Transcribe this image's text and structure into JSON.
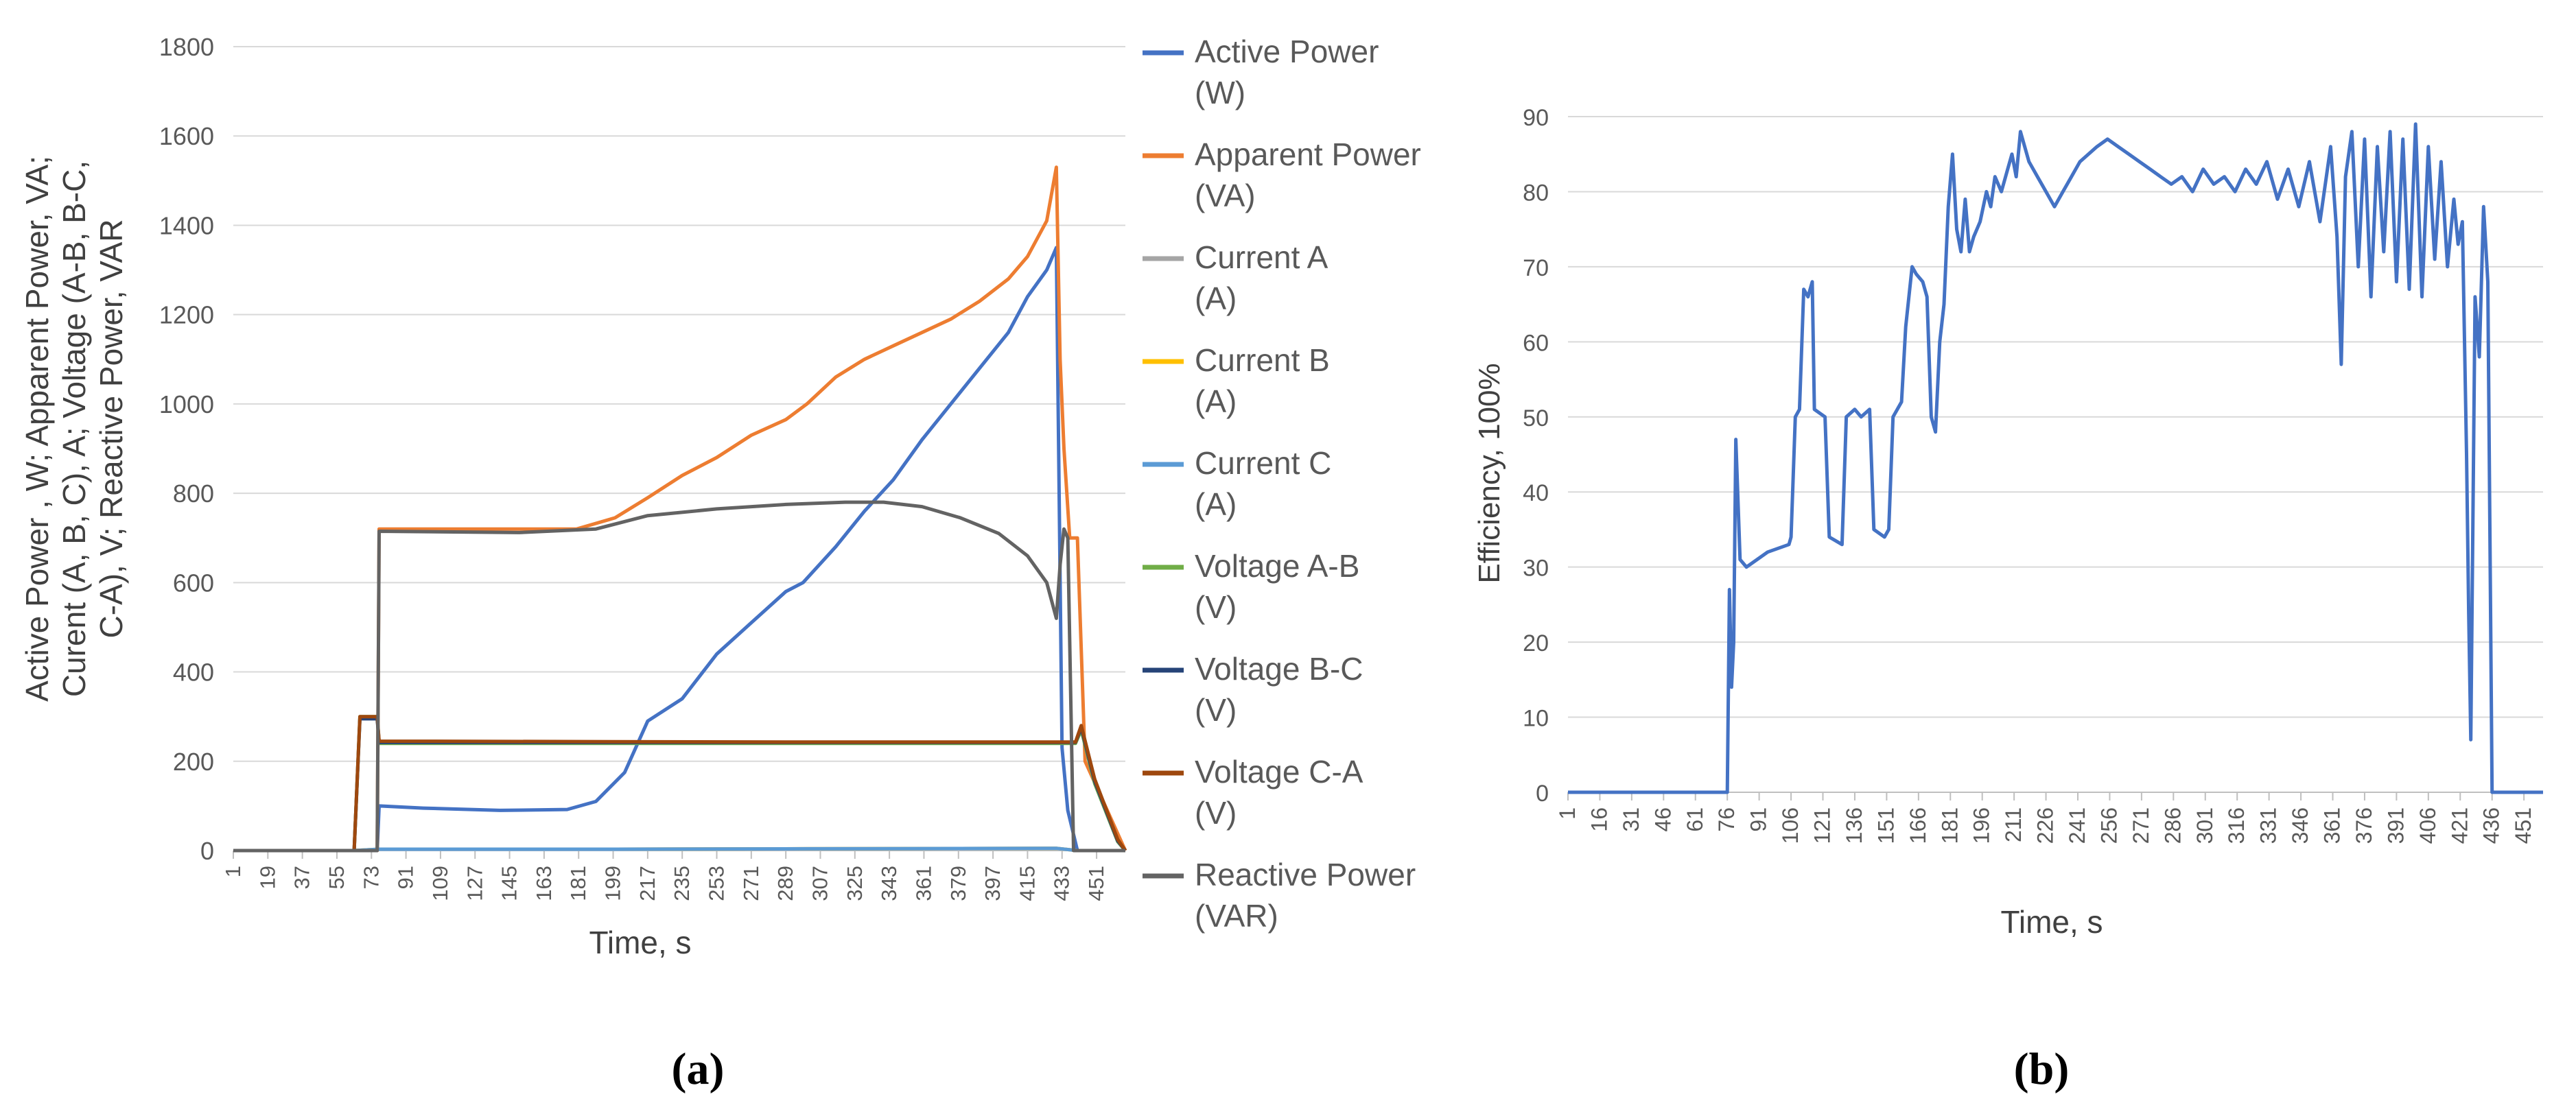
{
  "chart_data": [
    {
      "type": "line",
      "panel_label": "(a)",
      "xlabel": "Time, s",
      "ylabel": "Active Power , W; Apparent Power, VA; Curent (A, B, C), A; Voltage (A-B, B-C, C-A), V; Reactive Power, VAR",
      "ylim": [
        0,
        1800
      ],
      "yticks": [
        0,
        200,
        400,
        600,
        800,
        1000,
        1200,
        1400,
        1600,
        1800
      ],
      "xlim": [
        1,
        466
      ],
      "xticks": [
        1,
        19,
        37,
        55,
        73,
        91,
        109,
        127,
        145,
        163,
        181,
        199,
        217,
        235,
        253,
        271,
        289,
        307,
        325,
        343,
        361,
        379,
        397,
        415,
        433,
        451
      ],
      "grid": "horizontal",
      "legend_position": "right",
      "series": [
        {
          "name": "Active Power (W)",
          "color": "#4472C4",
          "points": [
            [
              1,
              0
            ],
            [
              64,
              0
            ],
            [
              76,
              0
            ],
            [
              77,
              100
            ],
            [
              100,
              95
            ],
            [
              140,
              90
            ],
            [
              175,
              92
            ],
            [
              190,
              110
            ],
            [
              205,
              175
            ],
            [
              217,
              290
            ],
            [
              235,
              340
            ],
            [
              253,
              440
            ],
            [
              271,
              510
            ],
            [
              289,
              580
            ],
            [
              298,
              600
            ],
            [
              315,
              680
            ],
            [
              330,
              760
            ],
            [
              345,
              830
            ],
            [
              360,
              920
            ],
            [
              375,
              1000
            ],
            [
              390,
              1080
            ],
            [
              405,
              1160
            ],
            [
              415,
              1240
            ],
            [
              425,
              1300
            ],
            [
              430,
              1350
            ],
            [
              433,
              230
            ],
            [
              436,
              90
            ],
            [
              441,
              0
            ],
            [
              466,
              0
            ]
          ]
        },
        {
          "name": "Apparent Power (VA)",
          "color": "#ED7D31",
          "points": [
            [
              1,
              0
            ],
            [
              64,
              0
            ],
            [
              76,
              0
            ],
            [
              77,
              720
            ],
            [
              120,
              720
            ],
            [
              180,
              720
            ],
            [
              200,
              745
            ],
            [
              217,
              790
            ],
            [
              235,
              840
            ],
            [
              253,
              880
            ],
            [
              271,
              930
            ],
            [
              289,
              965
            ],
            [
              300,
              1000
            ],
            [
              315,
              1060
            ],
            [
              330,
              1100
            ],
            [
              345,
              1130
            ],
            [
              360,
              1160
            ],
            [
              375,
              1190
            ],
            [
              390,
              1230
            ],
            [
              405,
              1280
            ],
            [
              415,
              1330
            ],
            [
              425,
              1410
            ],
            [
              430,
              1530
            ],
            [
              432,
              1100
            ],
            [
              434,
              900
            ],
            [
              437,
              700
            ],
            [
              441,
              700
            ],
            [
              445,
              200
            ],
            [
              466,
              0
            ]
          ]
        },
        {
          "name": "Current A (A)",
          "color": "#A5A5A5",
          "points": [
            [
              1,
              0
            ],
            [
              64,
              0
            ],
            [
              77,
              3
            ],
            [
              200,
              3
            ],
            [
              300,
              4
            ],
            [
              430,
              5
            ],
            [
              441,
              0
            ],
            [
              466,
              0
            ]
          ]
        },
        {
          "name": "Current B (A)",
          "color": "#FFC000",
          "points": [
            [
              1,
              0
            ],
            [
              64,
              0
            ],
            [
              77,
              3
            ],
            [
              200,
              3
            ],
            [
              300,
              4
            ],
            [
              430,
              5
            ],
            [
              441,
              0
            ],
            [
              466,
              0
            ]
          ]
        },
        {
          "name": "Current C (A)",
          "color": "#5B9BD5",
          "points": [
            [
              1,
              0
            ],
            [
              64,
              0
            ],
            [
              77,
              3
            ],
            [
              200,
              3
            ],
            [
              300,
              4
            ],
            [
              430,
              5
            ],
            [
              441,
              0
            ],
            [
              466,
              0
            ]
          ]
        },
        {
          "name": "Voltage A-B (V)",
          "color": "#70AD47",
          "points": [
            [
              1,
              0
            ],
            [
              64,
              0
            ],
            [
              67,
              300
            ],
            [
              76,
              300
            ],
            [
              77,
              240
            ],
            [
              300,
              240
            ],
            [
              440,
              240
            ],
            [
              443,
              270
            ],
            [
              450,
              150
            ],
            [
              462,
              20
            ],
            [
              466,
              0
            ]
          ]
        },
        {
          "name": "Voltage B-C (V)",
          "color": "#264478",
          "points": [
            [
              1,
              0
            ],
            [
              64,
              0
            ],
            [
              67,
              295
            ],
            [
              76,
              295
            ],
            [
              77,
              242
            ],
            [
              300,
              242
            ],
            [
              440,
              242
            ],
            [
              443,
              275
            ],
            [
              450,
              155
            ],
            [
              462,
              22
            ],
            [
              466,
              0
            ]
          ]
        },
        {
          "name": "Voltage C-A (V)",
          "color": "#9E480E",
          "points": [
            [
              1,
              0
            ],
            [
              64,
              0
            ],
            [
              67,
              300
            ],
            [
              76,
              300
            ],
            [
              77,
              245
            ],
            [
              300,
              243
            ],
            [
              440,
              243
            ],
            [
              443,
              280
            ],
            [
              450,
              160
            ],
            [
              462,
              25
            ],
            [
              466,
              0
            ]
          ]
        },
        {
          "name": "Reactive Power (VAR)",
          "color": "#636363",
          "points": [
            [
              1,
              0
            ],
            [
              76,
              0
            ],
            [
              77,
              715
            ],
            [
              150,
              712
            ],
            [
              190,
              720
            ],
            [
              217,
              750
            ],
            [
              253,
              765
            ],
            [
              289,
              775
            ],
            [
              320,
              780
            ],
            [
              340,
              780
            ],
            [
              360,
              770
            ],
            [
              380,
              745
            ],
            [
              400,
              710
            ],
            [
              415,
              660
            ],
            [
              425,
              600
            ],
            [
              430,
              520
            ],
            [
              432,
              640
            ],
            [
              434,
              720
            ],
            [
              436,
              700
            ],
            [
              439,
              0
            ],
            [
              466,
              0
            ]
          ]
        }
      ]
    },
    {
      "type": "line",
      "panel_label": "(b)",
      "xlabel": "Time, s",
      "ylabel": "Efficiency, 100%",
      "ylim": [
        0,
        90
      ],
      "yticks": [
        0,
        10,
        20,
        30,
        40,
        50,
        60,
        70,
        80,
        90
      ],
      "xlim": [
        1,
        460
      ],
      "xticks": [
        1,
        16,
        31,
        46,
        61,
        76,
        91,
        106,
        121,
        136,
        151,
        166,
        181,
        196,
        211,
        226,
        241,
        256,
        271,
        286,
        301,
        316,
        331,
        346,
        361,
        376,
        391,
        406,
        421,
        436,
        451
      ],
      "grid": "horizontal",
      "series": [
        {
          "name": "",
          "color": "#4472C4",
          "points": [
            [
              1,
              0
            ],
            [
              76,
              0
            ],
            [
              77,
              27
            ],
            [
              78,
              14
            ],
            [
              79,
              20
            ],
            [
              80,
              47
            ],
            [
              82,
              31
            ],
            [
              85,
              30
            ],
            [
              95,
              32
            ],
            [
              105,
              33
            ],
            [
              106,
              34
            ],
            [
              108,
              50
            ],
            [
              110,
              51
            ],
            [
              112,
              67
            ],
            [
              114,
              66
            ],
            [
              116,
              68
            ],
            [
              117,
              51
            ],
            [
              122,
              50
            ],
            [
              124,
              34
            ],
            [
              130,
              33
            ],
            [
              132,
              50
            ],
            [
              136,
              51
            ],
            [
              139,
              50
            ],
            [
              143,
              51
            ],
            [
              145,
              35
            ],
            [
              150,
              34
            ],
            [
              152,
              35
            ],
            [
              154,
              50
            ],
            [
              158,
              52
            ],
            [
              160,
              62
            ],
            [
              163,
              70
            ],
            [
              165,
              69
            ],
            [
              168,
              68
            ],
            [
              170,
              66
            ],
            [
              172,
              50
            ],
            [
              174,
              48
            ],
            [
              176,
              60
            ],
            [
              178,
              65
            ],
            [
              180,
              78
            ],
            [
              182,
              85
            ],
            [
              184,
              75
            ],
            [
              186,
              72
            ],
            [
              188,
              79
            ],
            [
              190,
              72
            ],
            [
              192,
              74
            ],
            [
              195,
              76
            ],
            [
              198,
              80
            ],
            [
              200,
              78
            ],
            [
              202,
              82
            ],
            [
              205,
              80
            ],
            [
              208,
              83
            ],
            [
              210,
              85
            ],
            [
              212,
              82
            ],
            [
              214,
              88
            ],
            [
              218,
              84
            ],
            [
              222,
              82
            ],
            [
              226,
              80
            ],
            [
              230,
              78
            ],
            [
              234,
              80
            ],
            [
              238,
              82
            ],
            [
              242,
              84
            ],
            [
              246,
              85
            ],
            [
              250,
              86
            ],
            [
              255,
              87
            ],
            [
              260,
              86
            ],
            [
              265,
              85
            ],
            [
              270,
              84
            ],
            [
              275,
              83
            ],
            [
              280,
              82
            ],
            [
              285,
              81
            ],
            [
              290,
              82
            ],
            [
              295,
              80
            ],
            [
              300,
              83
            ],
            [
              305,
              81
            ],
            [
              310,
              82
            ],
            [
              315,
              80
            ],
            [
              320,
              83
            ],
            [
              325,
              81
            ],
            [
              330,
              84
            ],
            [
              335,
              79
            ],
            [
              340,
              83
            ],
            [
              345,
              78
            ],
            [
              350,
              84
            ],
            [
              355,
              76
            ],
            [
              360,
              86
            ],
            [
              363,
              74
            ],
            [
              365,
              57
            ],
            [
              367,
              82
            ],
            [
              370,
              88
            ],
            [
              373,
              70
            ],
            [
              376,
              87
            ],
            [
              379,
              66
            ],
            [
              382,
              86
            ],
            [
              385,
              72
            ],
            [
              388,
              88
            ],
            [
              391,
              68
            ],
            [
              394,
              87
            ],
            [
              397,
              67
            ],
            [
              400,
              89
            ],
            [
              403,
              66
            ],
            [
              406,
              86
            ],
            [
              409,
              71
            ],
            [
              412,
              84
            ],
            [
              415,
              70
            ],
            [
              418,
              79
            ],
            [
              420,
              73
            ],
            [
              422,
              76
            ],
            [
              424,
              45
            ],
            [
              425,
              24
            ],
            [
              426,
              7
            ],
            [
              428,
              66
            ],
            [
              430,
              58
            ],
            [
              432,
              78
            ],
            [
              434,
              68
            ],
            [
              436,
              0
            ],
            [
              460,
              0
            ]
          ]
        }
      ]
    }
  ]
}
